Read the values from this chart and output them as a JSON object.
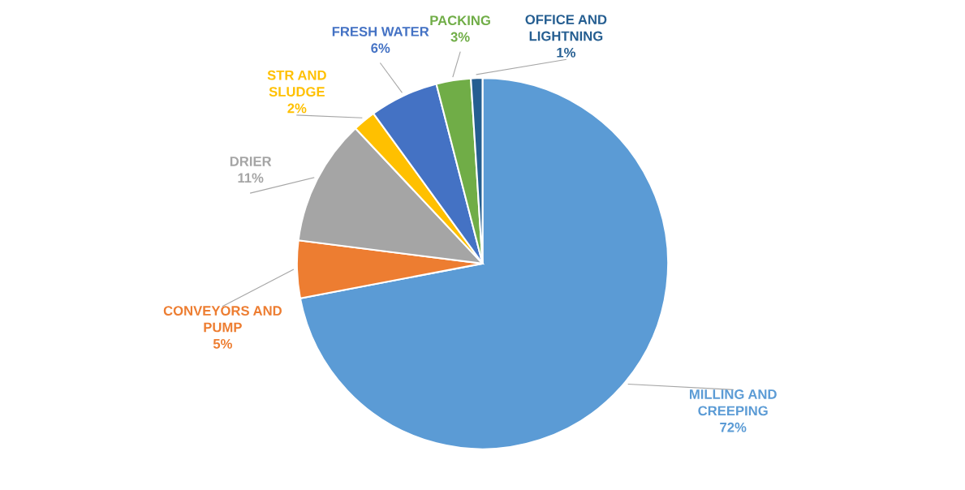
{
  "chart_data": {
    "type": "pie",
    "categories": [
      "MILLING AND CREEPING",
      "CONVEYORS AND PUMP",
      "DRIER",
      "STR AND SLUDGE",
      "FRESH WATER",
      "PACKING",
      "OFFICE AND LIGHTNING"
    ],
    "values": [
      72,
      5,
      11,
      2,
      6,
      3,
      1
    ],
    "value_labels": [
      "72%",
      "5%",
      "11%",
      "2%",
      "6%",
      "3%",
      "1%"
    ],
    "colors": [
      "#5b9bd5",
      "#ed7d31",
      "#a5a5a5",
      "#ffc000",
      "#4472c4",
      "#70ad47",
      "#255e91"
    ],
    "legend": false
  }
}
